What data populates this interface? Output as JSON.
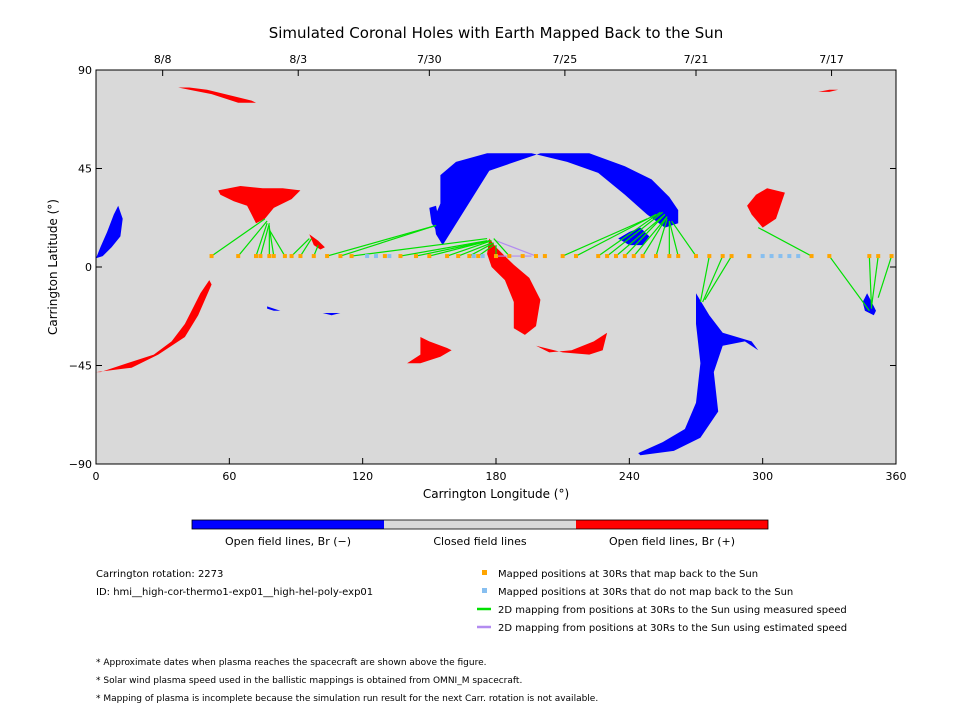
{
  "chart_data": {
    "type": "scatter",
    "title": "Simulated Coronal Holes with Earth Mapped Back to the Sun",
    "xlabel": "Carrington Longitude (°)",
    "ylabel": "Carrington Latitude (°)",
    "xlim": [
      0,
      360
    ],
    "ylim": [
      -90,
      90
    ],
    "x_ticks": [
      0,
      60,
      120,
      180,
      240,
      300,
      360
    ],
    "y_ticks": [
      -90,
      -45,
      0,
      45,
      90
    ],
    "x_tick_labels": [
      "0",
      "60",
      "120",
      "180",
      "240",
      "300",
      "360"
    ],
    "y_tick_labels": [
      "−90",
      "−45",
      "0",
      "45",
      "90"
    ],
    "top_date_axis": [
      {
        "label": "8/8",
        "lon": 30
      },
      {
        "label": "8/3",
        "lon": 91
      },
      {
        "label": "7/30",
        "lon": 150
      },
      {
        "label": "7/25",
        "lon": 211
      },
      {
        "label": "7/21",
        "lon": 270
      },
      {
        "label": "7/17",
        "lon": 331
      }
    ],
    "background_color": "#d9d9d9",
    "coronal_holes_negative": [
      {
        "points": [
          [
            0,
            4
          ],
          [
            2,
            9
          ],
          [
            5,
            16
          ],
          [
            8,
            24
          ],
          [
            10,
            28
          ],
          [
            12,
            22
          ],
          [
            11,
            14
          ],
          [
            7,
            9
          ],
          [
            3,
            5
          ]
        ]
      },
      {
        "points": [
          [
            155,
            29
          ],
          [
            152,
            22
          ],
          [
            153,
            15
          ],
          [
            156,
            10
          ],
          [
            177,
            44
          ],
          [
            200,
            52
          ],
          [
            222,
            52
          ],
          [
            238,
            46
          ],
          [
            250,
            40
          ],
          [
            258,
            32
          ],
          [
            262,
            26
          ],
          [
            262,
            20
          ],
          [
            256,
            18
          ],
          [
            248,
            24
          ],
          [
            238,
            33
          ],
          [
            226,
            43
          ],
          [
            212,
            48
          ],
          [
            196,
            52
          ],
          [
            176,
            52
          ],
          [
            162,
            48
          ],
          [
            155,
            42
          ]
        ]
      },
      {
        "points": [
          [
            150,
            27
          ],
          [
            151,
            20
          ],
          [
            153,
            17
          ],
          [
            154,
            23
          ],
          [
            153,
            28
          ]
        ]
      },
      {
        "points": [
          [
            235,
            13
          ],
          [
            240,
            16
          ],
          [
            245,
            18
          ],
          [
            249,
            14
          ],
          [
            246,
            10
          ],
          [
            240,
            10
          ]
        ]
      },
      {
        "points": [
          [
            270,
            -12
          ],
          [
            276,
            -22
          ],
          [
            282,
            -30
          ],
          [
            295,
            -34
          ],
          [
            298,
            -38
          ],
          [
            292,
            -34
          ],
          [
            282,
            -36
          ],
          [
            278,
            -48
          ],
          [
            280,
            -66
          ],
          [
            272,
            -78
          ],
          [
            260,
            -84
          ],
          [
            245,
            -86
          ],
          [
            244,
            -85
          ],
          [
            255,
            -80
          ],
          [
            265,
            -74
          ],
          [
            270,
            -62
          ],
          [
            272,
            -44
          ],
          [
            270,
            -26
          ]
        ]
      },
      {
        "points": [
          [
            347,
            -12
          ],
          [
            349,
            -16
          ],
          [
            351,
            -20
          ],
          [
            350,
            -22
          ],
          [
            346,
            -20
          ],
          [
            345,
            -16
          ]
        ]
      },
      {
        "points": [
          [
            77,
            -18
          ],
          [
            80,
            -19
          ],
          [
            83,
            -20
          ],
          [
            80,
            -20
          ],
          [
            77,
            -19
          ]
        ]
      },
      {
        "points": [
          [
            102,
            -21
          ],
          [
            106,
            -21
          ],
          [
            110,
            -21
          ],
          [
            106,
            -22
          ]
        ]
      }
    ],
    "coronal_holes_positive": [
      {
        "points": [
          [
            37,
            82
          ],
          [
            42,
            82
          ],
          [
            50,
            81
          ],
          [
            62,
            78
          ],
          [
            70,
            76
          ],
          [
            72,
            75
          ],
          [
            64,
            75
          ],
          [
            52,
            79
          ],
          [
            42,
            81
          ]
        ]
      },
      {
        "points": [
          [
            55,
            35
          ],
          [
            65,
            37
          ],
          [
            75,
            36
          ],
          [
            84,
            36
          ],
          [
            92,
            35
          ],
          [
            88,
            31
          ],
          [
            80,
            27
          ],
          [
            76,
            22
          ],
          [
            72,
            20
          ],
          [
            70,
            24
          ],
          [
            68,
            28
          ],
          [
            62,
            30
          ],
          [
            56,
            33
          ]
        ]
      },
      {
        "points": [
          [
            96,
            15
          ],
          [
            100,
            12
          ],
          [
            103,
            9
          ],
          [
            101,
            8
          ],
          [
            98,
            10
          ]
        ]
      },
      {
        "points": [
          [
            177,
            13
          ],
          [
            180,
            9
          ],
          [
            188,
            1
          ],
          [
            195,
            -5
          ],
          [
            200,
            -15
          ],
          [
            198,
            -27
          ],
          [
            193,
            -31
          ],
          [
            188,
            -28
          ],
          [
            188,
            -16
          ],
          [
            184,
            -6
          ],
          [
            178,
            0
          ],
          [
            176,
            6
          ]
        ]
      },
      {
        "points": [
          [
            0,
            -48
          ],
          [
            16,
            -46
          ],
          [
            28,
            -40
          ],
          [
            40,
            -32
          ],
          [
            46,
            -22
          ],
          [
            52,
            -8
          ],
          [
            51,
            -6
          ],
          [
            47,
            -12
          ],
          [
            44,
            -18
          ],
          [
            40,
            -26
          ],
          [
            34,
            -34
          ],
          [
            26,
            -40
          ],
          [
            14,
            -44
          ],
          [
            2,
            -48
          ]
        ]
      },
      {
        "points": [
          [
            146,
            -32
          ],
          [
            150,
            -34
          ],
          [
            158,
            -37
          ],
          [
            160,
            -38
          ],
          [
            155,
            -41
          ],
          [
            146,
            -44
          ],
          [
            140,
            -44
          ],
          [
            146,
            -40
          ]
        ]
      },
      {
        "points": [
          [
            198,
            -36
          ],
          [
            210,
            -39
          ],
          [
            222,
            -40
          ],
          [
            228,
            -38
          ],
          [
            230,
            -30
          ],
          [
            224,
            -34
          ],
          [
            214,
            -38
          ],
          [
            204,
            -39
          ]
        ]
      },
      {
        "points": [
          [
            295,
            24
          ],
          [
            300,
            18
          ],
          [
            306,
            22
          ],
          [
            310,
            34
          ],
          [
            302,
            36
          ],
          [
            297,
            33
          ],
          [
            293,
            28
          ]
        ]
      },
      {
        "points": [
          [
            325,
            80
          ],
          [
            330,
            80
          ],
          [
            334,
            81
          ],
          [
            330,
            81
          ]
        ]
      }
    ],
    "mapped_positions_map_back": [
      [
        52,
        5
      ],
      [
        64,
        5
      ],
      [
        72,
        5
      ],
      [
        74,
        5
      ],
      [
        78,
        5
      ],
      [
        80,
        5
      ],
      [
        85,
        5
      ],
      [
        88,
        5
      ],
      [
        92,
        5
      ],
      [
        98,
        5
      ],
      [
        104,
        5
      ],
      [
        110,
        5
      ],
      [
        115,
        5
      ],
      [
        130,
        5
      ],
      [
        137,
        5
      ],
      [
        144,
        5
      ],
      [
        150,
        5
      ],
      [
        158,
        5
      ],
      [
        163,
        5
      ],
      [
        168,
        5
      ],
      [
        172,
        5
      ],
      [
        180,
        5
      ],
      [
        186,
        5
      ],
      [
        192,
        5
      ],
      [
        198,
        5
      ],
      [
        202,
        5
      ],
      [
        210,
        5
      ],
      [
        216,
        5
      ],
      [
        226,
        5
      ],
      [
        230,
        5
      ],
      [
        234,
        5
      ],
      [
        238,
        5
      ],
      [
        242,
        5
      ],
      [
        246,
        5
      ],
      [
        252,
        5
      ],
      [
        258,
        5
      ],
      [
        262,
        5
      ],
      [
        270,
        5
      ],
      [
        276,
        5
      ],
      [
        282,
        5
      ],
      [
        286,
        5
      ],
      [
        294,
        5
      ],
      [
        322,
        5
      ],
      [
        330,
        5
      ],
      [
        348,
        5
      ],
      [
        352,
        5
      ],
      [
        358,
        5
      ]
    ],
    "mapped_positions_no_map_back": [
      [
        122,
        5
      ],
      [
        126,
        5
      ],
      [
        132,
        5
      ],
      [
        170,
        5
      ],
      [
        174,
        5
      ],
      [
        300,
        5
      ],
      [
        304,
        5
      ],
      [
        308,
        5
      ],
      [
        312,
        5
      ],
      [
        316,
        5
      ]
    ],
    "mapping_lines_measured": [
      [
        [
          52,
          5
        ],
        [
          76,
          22
        ]
      ],
      [
        [
          64,
          5
        ],
        [
          77,
          21
        ]
      ],
      [
        [
          72,
          5
        ],
        [
          77,
          20
        ]
      ],
      [
        [
          74,
          5
        ],
        [
          78,
          20
        ]
      ],
      [
        [
          78,
          5
        ],
        [
          78,
          19
        ]
      ],
      [
        [
          80,
          5
        ],
        [
          78,
          18
        ]
      ],
      [
        [
          85,
          5
        ],
        [
          78,
          17
        ]
      ],
      [
        [
          88,
          5
        ],
        [
          96,
          13
        ]
      ],
      [
        [
          92,
          5
        ],
        [
          97,
          13
        ]
      ],
      [
        [
          98,
          5
        ],
        [
          100,
          10
        ]
      ],
      [
        [
          104,
          5
        ],
        [
          153,
          19
        ]
      ],
      [
        [
          110,
          5
        ],
        [
          153,
          19
        ]
      ],
      [
        [
          115,
          5
        ],
        [
          176,
          13
        ]
      ],
      [
        [
          137,
          5
        ],
        [
          176,
          12
        ]
      ],
      [
        [
          144,
          5
        ],
        [
          177,
          12
        ]
      ],
      [
        [
          150,
          5
        ],
        [
          177,
          12
        ]
      ],
      [
        [
          158,
          5
        ],
        [
          178,
          12
        ]
      ],
      [
        [
          163,
          5
        ],
        [
          178,
          11
        ]
      ],
      [
        [
          168,
          5
        ],
        [
          179,
          11
        ]
      ],
      [
        [
          172,
          5
        ],
        [
          179,
          10
        ]
      ],
      [
        [
          180,
          5
        ],
        [
          180,
          10
        ]
      ],
      [
        [
          186,
          5
        ],
        [
          179,
          13
        ]
      ],
      [
        [
          210,
          5
        ],
        [
          248,
          22
        ]
      ],
      [
        [
          216,
          5
        ],
        [
          252,
          24
        ]
      ],
      [
        [
          226,
          5
        ],
        [
          254,
          25
        ]
      ],
      [
        [
          230,
          5
        ],
        [
          255,
          25
        ]
      ],
      [
        [
          234,
          5
        ],
        [
          256,
          24
        ]
      ],
      [
        [
          238,
          5
        ],
        [
          256,
          24
        ]
      ],
      [
        [
          242,
          5
        ],
        [
          257,
          23
        ]
      ],
      [
        [
          246,
          5
        ],
        [
          257,
          23
        ]
      ],
      [
        [
          252,
          5
        ],
        [
          257,
          22
        ]
      ],
      [
        [
          258,
          5
        ],
        [
          258,
          21
        ]
      ],
      [
        [
          262,
          5
        ],
        [
          258,
          21
        ]
      ],
      [
        [
          270,
          5
        ],
        [
          259,
          21
        ]
      ],
      [
        [
          276,
          5
        ],
        [
          272,
          -16
        ]
      ],
      [
        [
          282,
          5
        ],
        [
          273,
          -16
        ]
      ],
      [
        [
          286,
          5
        ],
        [
          274,
          -15
        ]
      ],
      [
        [
          322,
          5
        ],
        [
          298,
          18
        ]
      ],
      [
        [
          330,
          5
        ],
        [
          348,
          -20
        ]
      ],
      [
        [
          348,
          5
        ],
        [
          349,
          -19
        ]
      ],
      [
        [
          352,
          5
        ],
        [
          349,
          -18
        ]
      ],
      [
        [
          358,
          5
        ],
        [
          352,
          -14
        ]
      ]
    ],
    "mapping_lines_estimated": [
      [
        [
          180,
          5
        ],
        [
          196,
          5
        ]
      ],
      [
        [
          198,
          5
        ],
        [
          180,
          12
        ]
      ]
    ],
    "colorbar": {
      "segments": [
        {
          "color": "#0000ff",
          "label": "Open field lines, Br (−)"
        },
        {
          "color": "#d9d9d9",
          "label": "Closed field lines"
        },
        {
          "color": "#ff0000",
          "label": "Open field lines, Br (+)"
        }
      ]
    },
    "legend": [
      {
        "marker": "square",
        "color": "#ffa500",
        "label": "Mapped positions at 30Rs that map back to the Sun"
      },
      {
        "marker": "square",
        "color": "#87bff0",
        "label": "Mapped positions at 30Rs that do not map back to the Sun"
      },
      {
        "marker": "line",
        "color": "#00e000",
        "label": "2D mapping from positions at 30Rs to the Sun using measured speed"
      },
      {
        "marker": "line",
        "color": "#b38cf0",
        "label": "2D mapping from positions at 30Rs to the Sun using estimated speed"
      }
    ],
    "info": {
      "rotation": "Carrington rotation: 2273",
      "id": "ID: hmi__high-cor-thermo1-exp01__high-hel-poly-exp01"
    },
    "footnotes": [
      "* Approximate dates when plasma reaches the spacecraft are shown above the figure.",
      "* Solar wind plasma speed used in the ballistic mappings is obtained from OMNI_M spacecraft.",
      "* Mapping of plasma is incomplete because the simulation run result for the next Carr. rotation is not available."
    ]
  }
}
